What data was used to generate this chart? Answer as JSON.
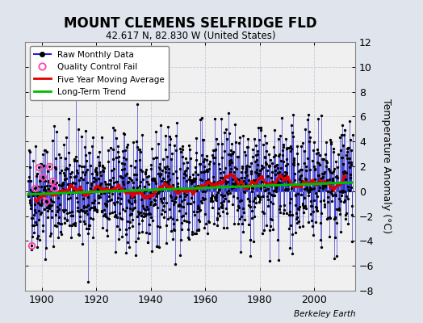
{
  "title": "MOUNT CLEMENS SELFRIDGE FLD",
  "subtitle": "42.617 N, 82.830 W (United States)",
  "ylabel": "Temperature Anomaly (°C)",
  "credit": "Berkeley Earth",
  "start_year": 1895,
  "end_year": 2013,
  "ylim": [
    -8,
    12
  ],
  "yticks": [
    -8,
    -6,
    -4,
    -2,
    0,
    2,
    4,
    6,
    8,
    10,
    12
  ],
  "xticks": [
    1900,
    1920,
    1940,
    1960,
    1980,
    2000
  ],
  "xlim": [
    1894,
    2015
  ],
  "background_color": "#e0e4ec",
  "plot_bg_color": "#f0f0f0",
  "grid_color": "#c8c8d8",
  "raw_line_color": "#2222cc",
  "raw_dot_color": "#000000",
  "qc_fail_color": "#ff44aa",
  "moving_avg_color": "#dd0000",
  "trend_color": "#00bb00",
  "seed": 42,
  "trend_slope": 0.008,
  "trend_intercept": -0.25,
  "noise_std": 2.2,
  "autocorr": 0.15,
  "qc_indices": [
    14,
    28,
    48,
    65,
    78,
    92,
    108,
    115
  ]
}
